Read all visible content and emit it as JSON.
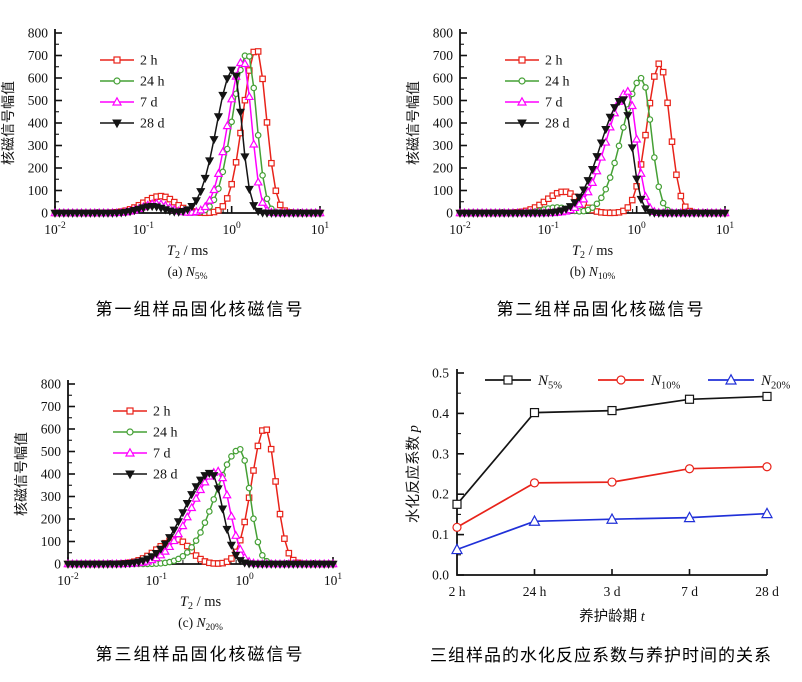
{
  "figure_background": "#ffffff",
  "chart_data": [
    {
      "id": "a",
      "type": "line",
      "x_scale": "log",
      "xlim_log10_ms": [
        -2,
        1
      ],
      "x_ticks_log10": [
        -2,
        -1,
        0,
        1
      ],
      "ylim": [
        0,
        800
      ],
      "y_tick_step": 100,
      "grid": false,
      "legend_position": "upper-left-inside",
      "xlabel": {
        "symbol": "T",
        "subscript": "2",
        "unit": "/ ms"
      },
      "ylabel": "核磁信号幅值",
      "series": [
        {
          "name": "2 h",
          "color": "#e8231a",
          "marker": "square-open",
          "peak_t2_ms": 1.9,
          "peak_amplitude": 730,
          "components": [
            {
              "amp": 730,
              "center_log10_ms": 0.28,
              "sigma_left": 0.15,
              "sigma_right": 0.11
            },
            {
              "amp": 75,
              "center_log10_ms": -0.8,
              "sigma_left": 0.2,
              "sigma_right": 0.16
            }
          ]
        },
        {
          "name": "24 h",
          "color": "#45a035",
          "marker": "circle-open",
          "peak_t2_ms": 1.5,
          "peak_amplitude": 710,
          "components": [
            {
              "amp": 710,
              "center_log10_ms": 0.18,
              "sigma_left": 0.17,
              "sigma_right": 0.1
            },
            {
              "amp": 35,
              "center_log10_ms": -0.85,
              "sigma_left": 0.16,
              "sigma_right": 0.14
            }
          ]
        },
        {
          "name": "7 d",
          "color": "#ff00ff",
          "marker": "triangle-up-open",
          "peak_t2_ms": 1.35,
          "peak_amplitude": 678,
          "components": [
            {
              "amp": 678,
              "center_log10_ms": 0.13,
              "sigma_left": 0.17,
              "sigma_right": 0.095
            },
            {
              "amp": 42,
              "center_log10_ms": -0.85,
              "sigma_left": 0.16,
              "sigma_right": 0.14
            }
          ]
        },
        {
          "name": "28 d",
          "color": "#141414",
          "marker": "triangle-down-filled",
          "peak_t2_ms": 1.05,
          "peak_amplitude": 640,
          "components": [
            {
              "amp": 640,
              "center_log10_ms": 0.02,
              "sigma_left": 0.19,
              "sigma_right": 0.095
            },
            {
              "amp": 30,
              "center_log10_ms": -0.9,
              "sigma_left": 0.15,
              "sigma_right": 0.13
            }
          ]
        }
      ],
      "subcaption": {
        "prefix": "(a)",
        "symbol": "N",
        "subscript": "5%"
      },
      "caption": "第一组样品固化核磁信号"
    },
    {
      "id": "b",
      "type": "line",
      "x_scale": "log",
      "xlim_log10_ms": [
        -2,
        1
      ],
      "x_ticks_log10": [
        -2,
        -1,
        0,
        1
      ],
      "ylim": [
        0,
        800
      ],
      "y_tick_step": 100,
      "grid": false,
      "legend_position": "upper-left-inside",
      "xlabel": {
        "symbol": "T",
        "subscript": "2",
        "unit": "/ ms"
      },
      "ylabel": "核磁信号幅值",
      "series": [
        {
          "name": "2 h",
          "color": "#e8231a",
          "marker": "square-open",
          "peak_t2_ms": 1.8,
          "peak_amplitude": 665,
          "components": [
            {
              "amp": 665,
              "center_log10_ms": 0.26,
              "sigma_left": 0.14,
              "sigma_right": 0.115
            },
            {
              "amp": 95,
              "center_log10_ms": -0.82,
              "sigma_left": 0.2,
              "sigma_right": 0.16
            }
          ]
        },
        {
          "name": "24 h",
          "color": "#45a035",
          "marker": "circle-open",
          "peak_t2_ms": 1.15,
          "peak_amplitude": 600,
          "components": [
            {
              "amp": 600,
              "center_log10_ms": 0.06,
              "sigma_left": 0.22,
              "sigma_right": 0.105
            },
            {
              "amp": 25,
              "center_log10_ms": -0.9,
              "sigma_left": 0.15,
              "sigma_right": 0.13
            }
          ]
        },
        {
          "name": "7 d",
          "color": "#ff00ff",
          "marker": "triangle-up-open",
          "peak_t2_ms": 0.8,
          "peak_amplitude": 540,
          "components": [
            {
              "amp": 540,
              "center_log10_ms": -0.1,
              "sigma_left": 0.24,
              "sigma_right": 0.1
            }
          ]
        },
        {
          "name": "28 d",
          "color": "#141414",
          "marker": "triangle-down-filled",
          "peak_t2_ms": 0.7,
          "peak_amplitude": 505,
          "components": [
            {
              "amp": 505,
              "center_log10_ms": -0.155,
              "sigma_left": 0.25,
              "sigma_right": 0.1
            }
          ]
        }
      ],
      "subcaption": {
        "prefix": "(b)",
        "symbol": "N",
        "subscript": "10%"
      },
      "caption": "第二组样品固化核磁信号"
    },
    {
      "id": "c",
      "type": "line",
      "x_scale": "log",
      "xlim_log10_ms": [
        -2,
        1
      ],
      "x_ticks_log10": [
        -2,
        -1,
        0,
        1
      ],
      "ylim": [
        0,
        800
      ],
      "y_tick_step": 100,
      "grid": false,
      "legend_position": "upper-left-inside",
      "xlabel": {
        "symbol": "T",
        "subscript": "2",
        "unit": "/ ms"
      },
      "ylabel": "核磁信号幅值",
      "series": [
        {
          "name": "2 h",
          "color": "#e8231a",
          "marker": "square-open",
          "peak_t2_ms": 1.7,
          "peak_amplitude": 605,
          "components": [
            {
              "amp": 605,
              "center_log10_ms": 0.23,
              "sigma_left": 0.15,
              "sigma_right": 0.12
            },
            {
              "amp": 110,
              "center_log10_ms": -0.77,
              "sigma_left": 0.22,
              "sigma_right": 0.15
            }
          ]
        },
        {
          "name": "24 h",
          "color": "#45a035",
          "marker": "circle-open",
          "peak_t2_ms": 0.9,
          "peak_amplitude": 510,
          "components": [
            {
              "amp": 510,
              "center_log10_ms": -0.05,
              "sigma_left": 0.28,
              "sigma_right": 0.11
            }
          ]
        },
        {
          "name": "7 d",
          "color": "#ff00ff",
          "marker": "triangle-up-open",
          "peak_t2_ms": 0.5,
          "peak_amplitude": 412,
          "components": [
            {
              "amp": 412,
              "center_log10_ms": -0.3,
              "sigma_left": 0.3,
              "sigma_right": 0.13
            }
          ]
        },
        {
          "name": "28 d",
          "color": "#141414",
          "marker": "triangle-down-filled",
          "peak_t2_ms": 0.42,
          "peak_amplitude": 405,
          "components": [
            {
              "amp": 405,
              "center_log10_ms": -0.38,
              "sigma_left": 0.3,
              "sigma_right": 0.13
            }
          ]
        }
      ],
      "subcaption": {
        "prefix": "(c)",
        "symbol": "N",
        "subscript": "20%"
      },
      "caption": "第三组样品固化核磁信号"
    },
    {
      "id": "d",
      "type": "line",
      "x_scale": "category",
      "categories": [
        "2 h",
        "24 h",
        "3 d",
        "7 d",
        "28 d"
      ],
      "ylim": [
        0,
        0.5
      ],
      "y_tick_step": 0.1,
      "grid": false,
      "legend_position": "top-inside-horizontal",
      "xlabel": {
        "text": "养护龄期",
        "italic_suffix": "t"
      },
      "ylabel": {
        "text": "水化反应系数",
        "italic_suffix": "p"
      },
      "series": [
        {
          "symbol": "N",
          "subscript": "5%",
          "color": "#141414",
          "marker": "square-open",
          "values": [
            0.175,
            0.402,
            0.407,
            0.435,
            0.442
          ]
        },
        {
          "symbol": "N",
          "subscript": "10%",
          "color": "#e8231a",
          "marker": "circle-open",
          "values": [
            0.118,
            0.228,
            0.23,
            0.263,
            0.268
          ]
        },
        {
          "symbol": "N",
          "subscript": "20%",
          "color": "#2030d8",
          "marker": "triangle-up-open",
          "values": [
            0.063,
            0.133,
            0.138,
            0.142,
            0.152
          ]
        }
      ],
      "caption": "三组样品的水化反应系数与养护时间的关系"
    }
  ]
}
